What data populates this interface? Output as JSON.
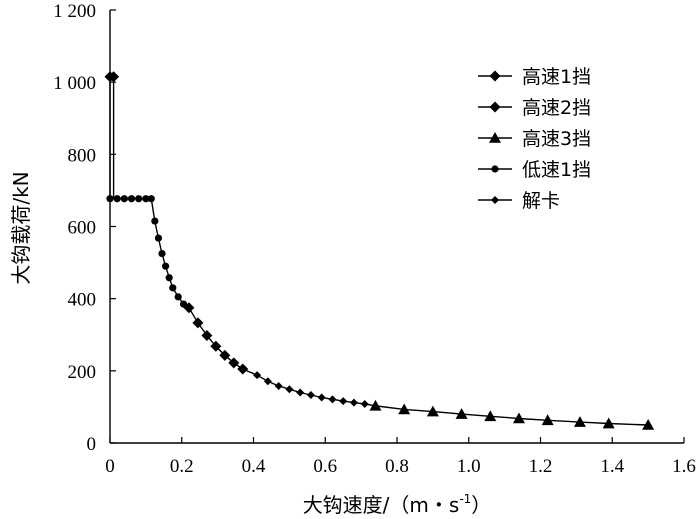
{
  "chart_data": {
    "type": "line",
    "title": "",
    "xlabel": "大钩速度/（m・s",
    "xlabel_sup": "-1",
    "xlabel_close": "）",
    "ylabel": "大钩载荷/kN",
    "xlim": [
      0,
      1.6
    ],
    "ylim": [
      0,
      1200
    ],
    "x_ticks": [
      "0",
      "0.2",
      "0.4",
      "0.6",
      "0.8",
      "1.0",
      "1.2",
      "1.4",
      "1.6"
    ],
    "y_ticks": [
      "0",
      "200",
      "400",
      "600",
      "800",
      "1 000",
      "1 200"
    ],
    "x_tick_values": [
      0,
      0.2,
      0.4,
      0.6,
      0.8,
      1.0,
      1.2,
      1.4,
      1.6
    ],
    "y_tick_values": [
      0,
      200,
      400,
      600,
      800,
      1000,
      1200
    ],
    "grid": false,
    "legend_position": "top-right",
    "series": [
      {
        "name": "高速1挡",
        "marker": "diamond",
        "points": [
          [
            0.0,
            1015
          ],
          [
            0.01,
            1015
          ]
        ]
      },
      {
        "name": "高速2挡",
        "marker": "diamond",
        "points": [
          [
            0.22,
            375
          ],
          [
            0.245,
            333
          ],
          [
            0.27,
            298
          ],
          [
            0.295,
            268
          ],
          [
            0.32,
            243
          ],
          [
            0.345,
            222
          ],
          [
            0.37,
            205
          ]
        ]
      },
      {
        "name": "高速3挡",
        "marker": "triangle",
        "points": [
          [
            0.74,
            103
          ],
          [
            0.82,
            93
          ],
          [
            0.9,
            87
          ],
          [
            0.98,
            80
          ],
          [
            1.06,
            74
          ],
          [
            1.14,
            68
          ],
          [
            1.22,
            63
          ],
          [
            1.31,
            58
          ],
          [
            1.39,
            54
          ],
          [
            1.5,
            50
          ]
        ]
      },
      {
        "name": "低速1挡",
        "marker": "circle",
        "points": [
          [
            0.0,
            677
          ],
          [
            0.02,
            677
          ],
          [
            0.04,
            677
          ],
          [
            0.06,
            677
          ],
          [
            0.08,
            677
          ],
          [
            0.1,
            677
          ],
          [
            0.115,
            677
          ],
          [
            0.125,
            615
          ],
          [
            0.135,
            568
          ],
          [
            0.145,
            525
          ],
          [
            0.155,
            490
          ],
          [
            0.165,
            458
          ],
          [
            0.175,
            430
          ],
          [
            0.19,
            405
          ],
          [
            0.205,
            385
          ]
        ]
      },
      {
        "name": "解卡",
        "marker": "small-diamond",
        "points": [
          [
            0.41,
            188
          ],
          [
            0.44,
            171
          ],
          [
            0.47,
            158
          ],
          [
            0.5,
            149
          ],
          [
            0.53,
            140
          ],
          [
            0.56,
            133
          ],
          [
            0.59,
            126
          ],
          [
            0.62,
            121
          ],
          [
            0.65,
            116
          ],
          [
            0.68,
            112
          ],
          [
            0.71,
            108
          ]
        ]
      }
    ]
  }
}
